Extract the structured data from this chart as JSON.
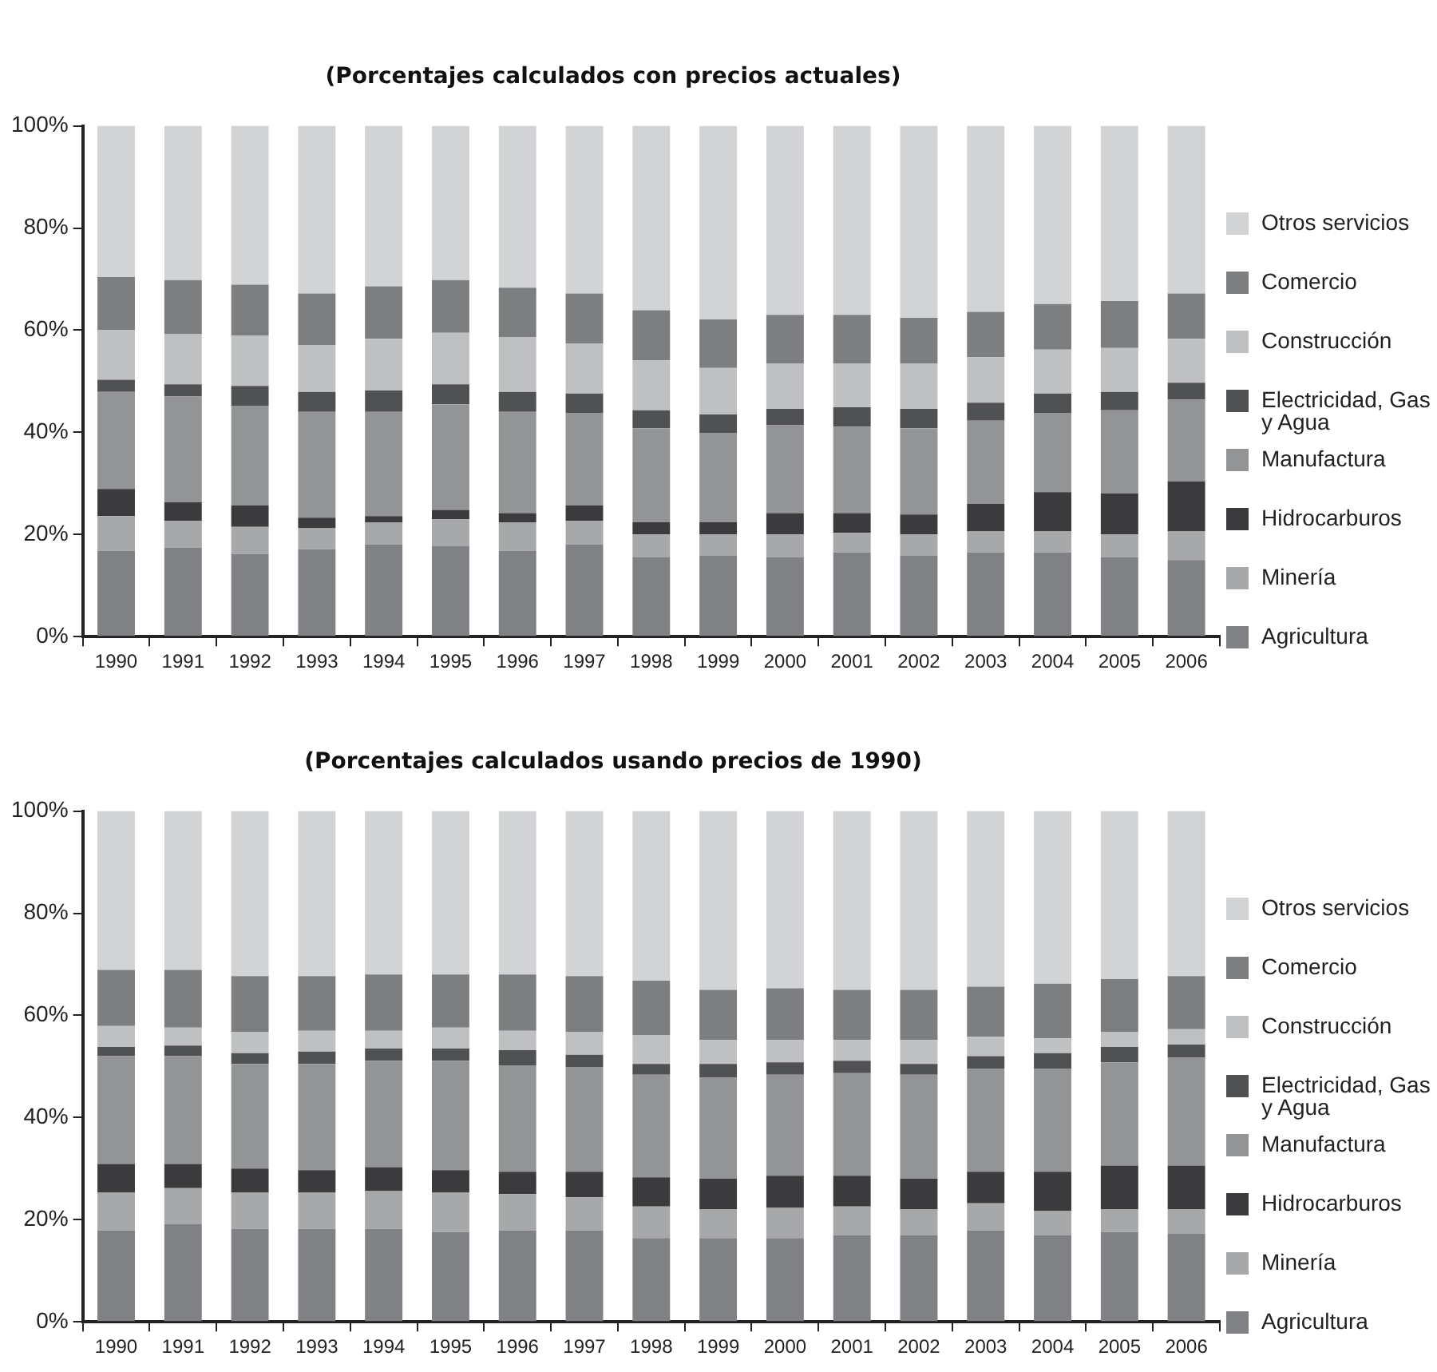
{
  "chart_data": [
    {
      "type": "bar",
      "title": "(Porcentajes calculados con precios actuales)",
      "stacked": true,
      "legend": "right",
      "categories": [
        "1990",
        "1991",
        "1992",
        "1993",
        "1994",
        "1995",
        "1996",
        "1997",
        "1998",
        "1999",
        "2000",
        "2001",
        "2002",
        "2003",
        "2004",
        "2005",
        "2006"
      ],
      "ylim": [
        0,
        100
      ],
      "yticks": [
        {
          "value": 0,
          "label": "0%"
        },
        {
          "value": 20,
          "label": "20%"
        },
        {
          "value": 40,
          "label": "40%"
        },
        {
          "value": 60,
          "label": "60%"
        },
        {
          "value": 80,
          "label": "80%"
        },
        {
          "value": 100,
          "label": "100%"
        }
      ],
      "series": [
        {
          "name": "Agricultura",
          "color": "#808184",
          "values": [
            16.8,
            17.4,
            16.2,
            17.1,
            18.0,
            17.7,
            16.8,
            18.0,
            15.6,
            15.9,
            15.6,
            16.5,
            15.9,
            16.5,
            16.5,
            15.6,
            15.0
          ]
        },
        {
          "name": "Minería",
          "color": "#a7a8aa",
          "values": [
            6.8,
            5.3,
            5.3,
            4.1,
            4.4,
            5.3,
            5.6,
            4.7,
            4.4,
            4.1,
            4.4,
            3.8,
            4.1,
            4.1,
            4.1,
            4.4,
            5.6
          ]
        },
        {
          "name": "Hidrocarburos",
          "color": "#3b3b3d",
          "values": [
            5.3,
            3.6,
            4.2,
            2.1,
            1.2,
            1.8,
            1.8,
            3.0,
            2.4,
            2.4,
            4.2,
            3.9,
            3.9,
            5.4,
            7.7,
            8.0,
            9.8
          ]
        },
        {
          "name": "Manufactura",
          "color": "#939496",
          "values": [
            19.0,
            20.7,
            19.5,
            20.7,
            20.4,
            20.7,
            19.8,
            18.1,
            18.4,
            17.5,
            17.2,
            16.9,
            16.9,
            16.3,
            15.5,
            16.3,
            16.0
          ]
        },
        {
          "name": "Electricidad, Gas y Agua",
          "color": "#505153",
          "values": [
            2.4,
            2.4,
            3.9,
            3.9,
            4.2,
            3.9,
            3.9,
            3.8,
            3.5,
            3.6,
            3.2,
            3.8,
            3.8,
            3.5,
            3.8,
            3.6,
            3.3
          ]
        },
        {
          "name": "Construcción",
          "color": "#bfc0c2",
          "values": [
            9.7,
            9.8,
            9.8,
            9.2,
            10.1,
            10.1,
            10.7,
            9.8,
            9.8,
            9.1,
            8.9,
            8.6,
            8.9,
            8.9,
            8.6,
            8.6,
            8.6
          ]
        },
        {
          "name": "Comercio",
          "color": "#7d7e80",
          "values": [
            10.4,
            10.6,
            10.0,
            10.1,
            10.3,
            10.3,
            9.7,
            9.8,
            9.8,
            9.5,
            9.5,
            9.5,
            8.9,
            8.9,
            8.9,
            9.2,
            8.9
          ]
        },
        {
          "name": "Otros servicios",
          "color": "#d2d3d5",
          "values": [
            29.6,
            30.2,
            31.1,
            32.8,
            31.4,
            30.2,
            31.7,
            32.8,
            36.1,
            37.9,
            37.0,
            37.0,
            37.6,
            36.4,
            34.9,
            34.3,
            32.8
          ]
        }
      ]
    },
    {
      "type": "bar",
      "title": "(Porcentajes calculados usando precios de 1990)",
      "stacked": true,
      "legend": "right",
      "categories": [
        "1990",
        "1991",
        "1992",
        "1993",
        "1994",
        "1995",
        "1996",
        "1997",
        "1998",
        "1999",
        "2000",
        "2001",
        "2002",
        "2003",
        "2004",
        "2005",
        "2006"
      ],
      "ylim": [
        0,
        100
      ],
      "yticks": [
        {
          "value": 0,
          "label": "0%"
        },
        {
          "value": 20,
          "label": "20%"
        },
        {
          "value": 40,
          "label": "40%"
        },
        {
          "value": 60,
          "label": "60%"
        },
        {
          "value": 80,
          "label": "80%"
        },
        {
          "value": 100,
          "label": "100%"
        }
      ],
      "series": [
        {
          "name": "Agricultura",
          "color": "#808184",
          "values": [
            17.9,
            19.1,
            18.2,
            18.2,
            18.2,
            17.6,
            17.9,
            17.9,
            16.4,
            16.4,
            16.4,
            17.0,
            17.0,
            17.9,
            17.0,
            17.6,
            17.3
          ]
        },
        {
          "name": "Minería",
          "color": "#a7a8aa",
          "values": [
            7.4,
            7.1,
            7.1,
            7.1,
            7.4,
            7.7,
            7.1,
            6.5,
            6.2,
            5.6,
            5.9,
            5.6,
            5.0,
            5.3,
            4.7,
            4.4,
            4.7
          ]
        },
        {
          "name": "Hidrocarburos",
          "color": "#3b3b3d",
          "values": [
            5.6,
            4.7,
            4.7,
            4.4,
            4.7,
            4.4,
            4.4,
            5.0,
            5.7,
            6.0,
            6.3,
            6.0,
            6.0,
            6.2,
            7.7,
            8.6,
            8.6
          ]
        },
        {
          "name": "Manufactura",
          "color": "#939496",
          "values": [
            21.1,
            21.1,
            20.5,
            20.8,
            20.8,
            21.4,
            20.8,
            20.5,
            20.1,
            19.8,
            19.8,
            20.1,
            20.4,
            20.2,
            20.2,
            20.2,
            21.1
          ]
        },
        {
          "name": "Electricidad, Gas y Agua",
          "color": "#505153",
          "values": [
            1.8,
            2.1,
            2.1,
            2.4,
            2.4,
            2.4,
            3.0,
            2.4,
            2.1,
            2.7,
            2.4,
            2.4,
            2.1,
            2.4,
            3.0,
            3.0,
            2.6
          ]
        },
        {
          "name": "Construcción",
          "color": "#bfc0c2",
          "values": [
            4.1,
            3.5,
            4.1,
            4.1,
            3.5,
            4.1,
            3.8,
            4.4,
            5.6,
            4.7,
            4.4,
            4.1,
            4.7,
            3.8,
            2.9,
            2.9,
            3.0
          ]
        },
        {
          "name": "Comercio",
          "color": "#7d7e80",
          "values": [
            11.0,
            11.3,
            11.0,
            10.7,
            11.0,
            10.4,
            11.0,
            11.0,
            10.7,
            9.8,
            10.1,
            9.8,
            9.8,
            9.8,
            10.7,
            10.4,
            10.4
          ]
        },
        {
          "name": "Otros servicios",
          "color": "#d2d3d5",
          "values": [
            31.1,
            31.1,
            32.3,
            32.3,
            32.0,
            32.0,
            32.0,
            32.3,
            33.2,
            35.0,
            34.7,
            35.0,
            35.0,
            34.4,
            33.8,
            32.9,
            32.3
          ]
        }
      ]
    }
  ]
}
